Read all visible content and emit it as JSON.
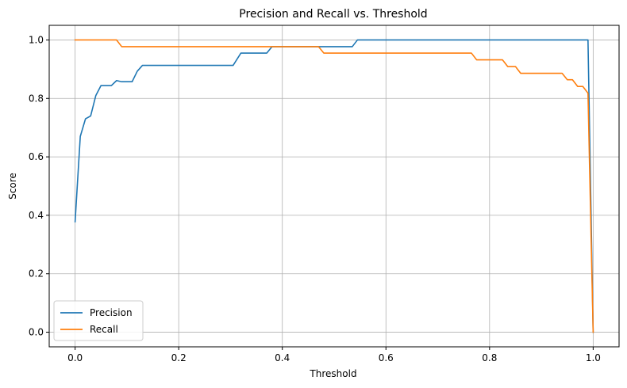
{
  "chart_data": {
    "type": "line",
    "title": "Precision and Recall vs. Threshold",
    "xlabel": "Threshold",
    "ylabel": "Score",
    "xlim": [
      -0.05,
      1.05
    ],
    "ylim": [
      -0.05,
      1.05
    ],
    "xticks": [
      0.0,
      0.2,
      0.4,
      0.6,
      0.8,
      1.0
    ],
    "xtick_labels": [
      "0.0",
      "0.2",
      "0.4",
      "0.6",
      "0.8",
      "1.0"
    ],
    "yticks": [
      0.0,
      0.2,
      0.4,
      0.6,
      0.8,
      1.0
    ],
    "ytick_labels": [
      "0.0",
      "0.2",
      "0.4",
      "0.6",
      "0.8",
      "1.0"
    ],
    "grid": true,
    "legend_position": "lower-left",
    "series": [
      {
        "name": "Precision",
        "color": "#1f77b4",
        "x": [
          0.0,
          0.01,
          0.02,
          0.03,
          0.04,
          0.05,
          0.06,
          0.07,
          0.08,
          0.09,
          0.1,
          0.11,
          0.12,
          0.13,
          0.2,
          0.3,
          0.305,
          0.32,
          0.37,
          0.38,
          0.4,
          0.5,
          0.535,
          0.545,
          0.6,
          0.7,
          0.8,
          0.9,
          0.98,
          0.99,
          1.0
        ],
        "y": [
          0.378,
          0.67,
          0.73,
          0.74,
          0.81,
          0.844,
          0.844,
          0.844,
          0.861,
          0.857,
          0.857,
          0.857,
          0.893,
          0.913,
          0.913,
          0.913,
          0.913,
          0.955,
          0.955,
          0.977,
          0.977,
          0.977,
          0.977,
          1.0,
          1.0,
          1.0,
          1.0,
          1.0,
          1.0,
          1.0,
          0.0
        ]
      },
      {
        "name": "Recall",
        "color": "#ff7f0e",
        "x": [
          0.0,
          0.05,
          0.08,
          0.09,
          0.2,
          0.3,
          0.4,
          0.47,
          0.48,
          0.5,
          0.6,
          0.7,
          0.765,
          0.775,
          0.8,
          0.825,
          0.835,
          0.85,
          0.86,
          0.9,
          0.94,
          0.95,
          0.96,
          0.97,
          0.98,
          0.99,
          1.0
        ],
        "y": [
          1.0,
          1.0,
          1.0,
          0.977,
          0.977,
          0.977,
          0.977,
          0.977,
          0.955,
          0.955,
          0.955,
          0.955,
          0.955,
          0.932,
          0.932,
          0.932,
          0.909,
          0.909,
          0.886,
          0.886,
          0.886,
          0.864,
          0.864,
          0.841,
          0.841,
          0.818,
          0.0
        ]
      }
    ]
  }
}
